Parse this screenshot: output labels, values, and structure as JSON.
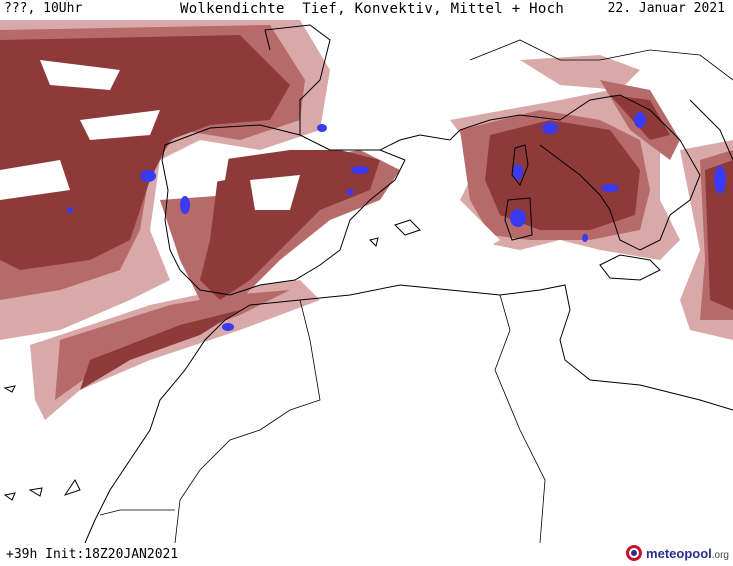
{
  "header": {
    "left": "???, 10Uhr",
    "center": "Wolkendichte  Tief, Konvektiv, Mittel + Hoch",
    "right": "22. Januar 2021"
  },
  "footer": {
    "run": "+39h Init:18Z20JAN2021"
  },
  "brand": {
    "name": "meteopool",
    "tld": ".org"
  },
  "colors": {
    "cloud_dense": "#8f3a3a",
    "cloud_medium": "#b76a6a",
    "cloud_light": "#d9a9a9",
    "convective": "#3a3af0",
    "coastline": "#000000"
  }
}
